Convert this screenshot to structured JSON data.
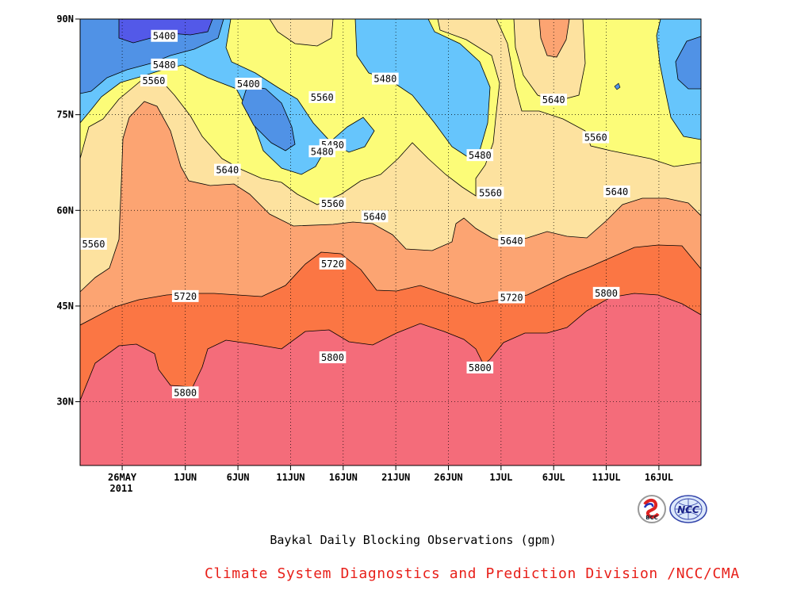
{
  "chart_data": {
    "type": "heatmap",
    "title": "Baykal Daily Blocking Observations (gpm)",
    "source_caption": "Climate System Diagnostics and Prediction Division /NCC/CMA",
    "x_ticks": [
      "26MAY",
      "1JUN",
      "6JUN",
      "11JUN",
      "16JUN",
      "21JUN",
      "26JUN",
      "1JUL",
      "6JUL",
      "11JUL",
      "16JUL"
    ],
    "x_year_label": "2011",
    "x_range_days_from_1jun": [
      -10,
      49
    ],
    "y_ticks": [
      "30N",
      "45N",
      "60N",
      "75N",
      "90N"
    ],
    "y_tick_values": [
      30,
      45,
      60,
      75,
      90
    ],
    "ylim": [
      20,
      90
    ],
    "contour_levels": [
      5400,
      5480,
      5560,
      5640,
      5720,
      5800
    ],
    "contour_labels": [
      {
        "text": "5400",
        "date_offset": -2,
        "lat": 87.3
      },
      {
        "text": "5480",
        "date_offset": -2,
        "lat": 82.8
      },
      {
        "text": "5560",
        "date_offset": -3,
        "lat": 80.3
      },
      {
        "text": "5400",
        "date_offset": 6,
        "lat": 79.8
      },
      {
        "text": "5560",
        "date_offset": 13,
        "lat": 77.7
      },
      {
        "text": "5480",
        "date_offset": 19,
        "lat": 80.6
      },
      {
        "text": "5480",
        "date_offset": 14,
        "lat": 70.2
      },
      {
        "text": "5480",
        "date_offset": 13,
        "lat": 69.2
      },
      {
        "text": "5640",
        "date_offset": 4,
        "lat": 66.3
      },
      {
        "text": "5480",
        "date_offset": 28,
        "lat": 68.6
      },
      {
        "text": "5640",
        "date_offset": 35,
        "lat": 77.3
      },
      {
        "text": "5560",
        "date_offset": 39,
        "lat": 71.4
      },
      {
        "text": "5560",
        "date_offset": 29,
        "lat": 62.7
      },
      {
        "text": "5560",
        "date_offset": 14,
        "lat": 61.0
      },
      {
        "text": "5640",
        "date_offset": 18,
        "lat": 59.0
      },
      {
        "text": "5640",
        "date_offset": 41,
        "lat": 62.9
      },
      {
        "text": "5560",
        "date_offset": -10,
        "lat": 54.7
      },
      {
        "text": "5720",
        "date_offset": 14,
        "lat": 51.6
      },
      {
        "text": "5640",
        "date_offset": 31,
        "lat": 55.2
      },
      {
        "text": "5720",
        "date_offset": 0,
        "lat": 46.5
      },
      {
        "text": "5720",
        "date_offset": 31,
        "lat": 46.3
      },
      {
        "text": "5800",
        "date_offset": 40,
        "lat": 47.0
      },
      {
        "text": "5800",
        "date_offset": 14,
        "lat": 36.9
      },
      {
        "text": "5800",
        "date_offset": 28,
        "lat": 35.3
      },
      {
        "text": "5800",
        "date_offset": 0,
        "lat": 31.4
      }
    ],
    "fill_colors": {
      "below_5400": "#5359e8",
      "5400_5480": "#5092e6",
      "5480_5560": "#66c5fc",
      "5560_5640": "#fcfc78",
      "5640_5720": "#fde29f",
      "5720_5800": "#fca472",
      "5800_5880": "#fb7644",
      "above_5880": "#f46c7a"
    },
    "grid": true,
    "grid_style": "dotted"
  },
  "logos": [
    "BCC",
    "NCC"
  ]
}
